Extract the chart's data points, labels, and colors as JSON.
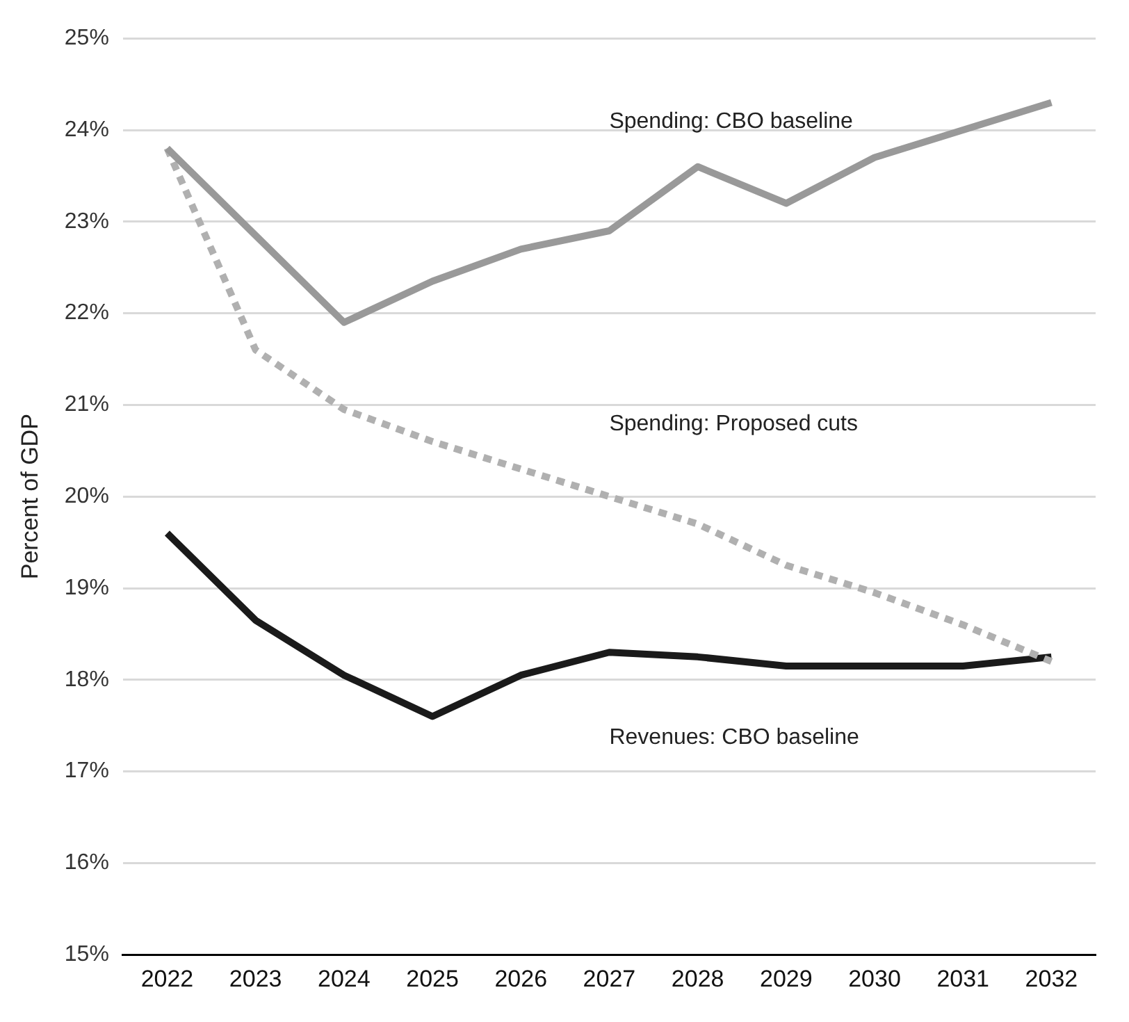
{
  "chart_data": {
    "type": "line",
    "ylabel": "Percent of GDP",
    "categories": [
      "2022",
      "2023",
      "2024",
      "2025",
      "2026",
      "2027",
      "2028",
      "2029",
      "2030",
      "2031",
      "2032"
    ],
    "series": [
      {
        "name": "Spending: CBO baseline",
        "color": "#999999",
        "line_style": "solid",
        "values": [
          23.8,
          22.85,
          21.9,
          22.35,
          22.7,
          22.9,
          23.6,
          23.2,
          23.7,
          24.0,
          24.3
        ]
      },
      {
        "name": "Spending: Proposed cuts",
        "color": "#b0b0b0",
        "line_style": "dotted",
        "values": [
          23.8,
          21.6,
          20.95,
          20.6,
          20.3,
          20.0,
          19.7,
          19.25,
          18.95,
          18.6,
          18.2
        ]
      },
      {
        "name": "Revenues: CBO baseline",
        "color": "#1a1a1a",
        "line_style": "solid",
        "values": [
          19.6,
          18.65,
          18.05,
          17.6,
          18.05,
          18.3,
          18.25,
          18.15,
          18.15,
          18.15,
          18.25
        ]
      }
    ],
    "ylim": [
      15,
      25
    ],
    "yticks": [
      {
        "value": 15,
        "label": "15%"
      },
      {
        "value": 16,
        "label": "16%"
      },
      {
        "value": 17,
        "label": "17%"
      },
      {
        "value": 18,
        "label": "18%"
      },
      {
        "value": 19,
        "label": "19%"
      },
      {
        "value": 20,
        "label": "20%"
      },
      {
        "value": 21,
        "label": "21%"
      },
      {
        "value": 22,
        "label": "22%"
      },
      {
        "value": 23,
        "label": "23%"
      },
      {
        "value": 24,
        "label": "24%"
      },
      {
        "value": 25,
        "label": "25%"
      }
    ],
    "grid": "y",
    "legend": false,
    "marker": "none"
  }
}
